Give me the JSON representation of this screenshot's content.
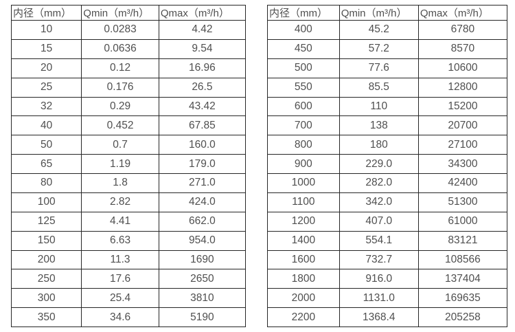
{
  "tables": [
    {
      "name": "flow-rate-table-small-diameters",
      "headers": [
        "内径（mm）",
        "Qmin（m³/h）",
        "Qmax（m³/h）"
      ],
      "rows": [
        [
          "10",
          "0.0283",
          "4.42"
        ],
        [
          "15",
          "0.0636",
          "9.54"
        ],
        [
          "20",
          "0.12",
          "16.96"
        ],
        [
          "25",
          "0.176",
          "26.5"
        ],
        [
          "32",
          "0.29",
          "43.42"
        ],
        [
          "40",
          "0.452",
          "67.85"
        ],
        [
          "50",
          "0.7",
          "160.0"
        ],
        [
          "65",
          "1.19",
          "179.0"
        ],
        [
          "80",
          "1.8",
          "271.0"
        ],
        [
          "100",
          "2.82",
          "424.0"
        ],
        [
          "125",
          "4.41",
          "662.0"
        ],
        [
          "150",
          "6.63",
          "954.0"
        ],
        [
          "200",
          "11.3",
          "1690"
        ],
        [
          "250",
          "17.6",
          "2650"
        ],
        [
          "300",
          "25.4",
          "3810"
        ],
        [
          "350",
          "34.6",
          "5190"
        ]
      ]
    },
    {
      "name": "flow-rate-table-large-diameters",
      "headers": [
        "内径（mm）",
        "Qmin（m³/h）",
        "Qmax（m³/h）"
      ],
      "rows": [
        [
          "400",
          "45.2",
          "6780"
        ],
        [
          "450",
          "57.2",
          "8570"
        ],
        [
          "500",
          "77.6",
          "10600"
        ],
        [
          "550",
          "85.5",
          "12800"
        ],
        [
          "600",
          "110",
          "15200"
        ],
        [
          "700",
          "138",
          "20700"
        ],
        [
          "800",
          "180",
          "27100"
        ],
        [
          "900",
          "229.0",
          "34300"
        ],
        [
          "1000",
          "282.0",
          "42400"
        ],
        [
          "1100",
          "342.0",
          "51300"
        ],
        [
          "1200",
          "407.0",
          "61000"
        ],
        [
          "1400",
          "554.1",
          "83121"
        ],
        [
          "1600",
          "732.7",
          "108566"
        ],
        [
          "1800",
          "916.0",
          "137404"
        ],
        [
          "2000",
          "1131.0",
          "169635"
        ],
        [
          "2200",
          "1368.4",
          "205258"
        ]
      ]
    }
  ],
  "colors": {
    "border": "#262626",
    "text": "#4f4f4f",
    "background": "#ffffff"
  }
}
